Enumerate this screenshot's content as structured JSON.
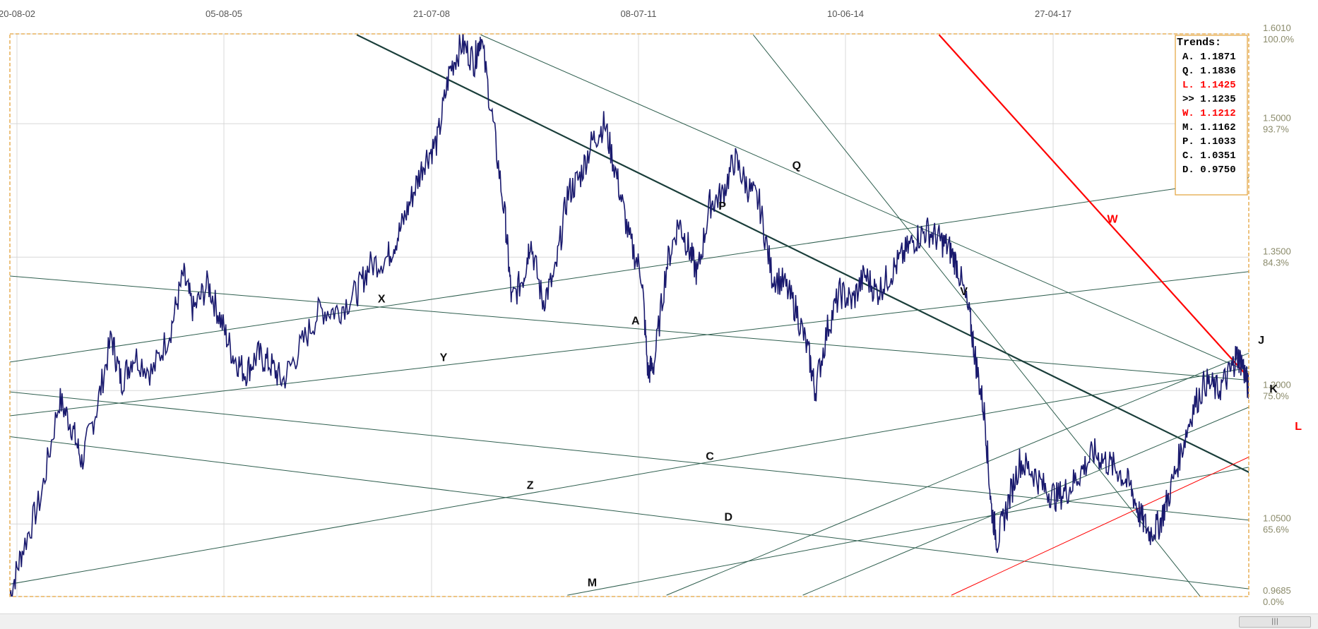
{
  "chart_data": {
    "type": "line",
    "x_ticks": [
      "20-08-02",
      "05-08-05",
      "21-07-08",
      "08-07-11",
      "10-06-14",
      "27-04-17"
    ],
    "y_ticks": [
      {
        "value": 1.601,
        "label": "1.6010",
        "pct": "100.0%"
      },
      {
        "value": 1.5,
        "label": "1.5000",
        "pct": "93.7%"
      },
      {
        "value": 1.35,
        "label": "1.3500",
        "pct": "84.3%"
      },
      {
        "value": 1.2,
        "label": "1.2000",
        "pct": "75.0%"
      },
      {
        "value": 1.05,
        "label": "1.0500",
        "pct": "65.6%"
      },
      {
        "value": 0.9685,
        "label": "0.9685",
        "pct": "0.0%"
      }
    ],
    "ylim": [
      0.9685,
      1.601
    ],
    "grid": true,
    "series": [
      {
        "color": "#1a1a6e",
        "points": [
          [
            0.0,
            0.97
          ],
          [
            0.01,
            1.02
          ],
          [
            0.025,
            1.08
          ],
          [
            0.04,
            1.19
          ],
          [
            0.05,
            1.16
          ],
          [
            0.058,
            1.12
          ],
          [
            0.07,
            1.18
          ],
          [
            0.082,
            1.26
          ],
          [
            0.09,
            1.21
          ],
          [
            0.1,
            1.24
          ],
          [
            0.115,
            1.22
          ],
          [
            0.13,
            1.27
          ],
          [
            0.14,
            1.33
          ],
          [
            0.148,
            1.29
          ],
          [
            0.16,
            1.32
          ],
          [
            0.17,
            1.28
          ],
          [
            0.18,
            1.24
          ],
          [
            0.19,
            1.22
          ],
          [
            0.2,
            1.24
          ],
          [
            0.21,
            1.23
          ],
          [
            0.22,
            1.21
          ],
          [
            0.235,
            1.25
          ],
          [
            0.25,
            1.29
          ],
          [
            0.265,
            1.29
          ],
          [
            0.28,
            1.31
          ],
          [
            0.29,
            1.34
          ],
          [
            0.305,
            1.35
          ],
          [
            0.315,
            1.38
          ],
          [
            0.325,
            1.42
          ],
          [
            0.335,
            1.46
          ],
          [
            0.345,
            1.48
          ],
          [
            0.355,
            1.56
          ],
          [
            0.365,
            1.59
          ],
          [
            0.375,
            1.57
          ],
          [
            0.38,
            1.6
          ],
          [
            0.39,
            1.5
          ],
          [
            0.4,
            1.39
          ],
          [
            0.405,
            1.3
          ],
          [
            0.415,
            1.33
          ],
          [
            0.42,
            1.37
          ],
          [
            0.43,
            1.3
          ],
          [
            0.44,
            1.33
          ],
          [
            0.45,
            1.42
          ],
          [
            0.46,
            1.44
          ],
          [
            0.47,
            1.48
          ],
          [
            0.48,
            1.5
          ],
          [
            0.49,
            1.44
          ],
          [
            0.5,
            1.37
          ],
          [
            0.51,
            1.33
          ],
          [
            0.515,
            1.22
          ],
          [
            0.52,
            1.23
          ],
          [
            0.53,
            1.34
          ],
          [
            0.54,
            1.39
          ],
          [
            0.548,
            1.36
          ],
          [
            0.555,
            1.33
          ],
          [
            0.565,
            1.41
          ],
          [
            0.575,
            1.42
          ],
          [
            0.585,
            1.46
          ],
          [
            0.595,
            1.43
          ],
          [
            0.605,
            1.41
          ],
          [
            0.615,
            1.33
          ],
          [
            0.625,
            1.32
          ],
          [
            0.635,
            1.29
          ],
          [
            0.645,
            1.24
          ],
          [
            0.65,
            1.2
          ],
          [
            0.66,
            1.27
          ],
          [
            0.67,
            1.31
          ],
          [
            0.68,
            1.3
          ],
          [
            0.69,
            1.33
          ],
          [
            0.7,
            1.31
          ],
          [
            0.71,
            1.33
          ],
          [
            0.72,
            1.35
          ],
          [
            0.73,
            1.37
          ],
          [
            0.74,
            1.38
          ],
          [
            0.75,
            1.37
          ],
          [
            0.758,
            1.36
          ],
          [
            0.765,
            1.34
          ],
          [
            0.775,
            1.28
          ],
          [
            0.78,
            1.23
          ],
          [
            0.787,
            1.17
          ],
          [
            0.792,
            1.07
          ],
          [
            0.797,
            1.03
          ],
          [
            0.805,
            1.07
          ],
          [
            0.815,
            1.12
          ],
          [
            0.825,
            1.11
          ],
          [
            0.835,
            1.09
          ],
          [
            0.845,
            1.08
          ],
          [
            0.855,
            1.09
          ],
          [
            0.865,
            1.11
          ],
          [
            0.875,
            1.13
          ],
          [
            0.885,
            1.12
          ],
          [
            0.895,
            1.11
          ],
          [
            0.905,
            1.09
          ],
          [
            0.912,
            1.06
          ],
          [
            0.92,
            1.04
          ],
          [
            0.928,
            1.05
          ],
          [
            0.935,
            1.08
          ],
          [
            0.945,
            1.13
          ],
          [
            0.955,
            1.18
          ],
          [
            0.965,
            1.21
          ],
          [
            0.975,
            1.2
          ],
          [
            0.985,
            1.22
          ],
          [
            0.99,
            1.24
          ],
          [
            0.995,
            1.23
          ],
          [
            1.0,
            1.2
          ],
          [
            1.005,
            1.17
          ],
          [
            1.015,
            1.17
          ],
          [
            1.025,
            1.17
          ],
          [
            1.035,
            1.15
          ],
          [
            1.045,
            1.14
          ],
          [
            1.055,
            1.13
          ],
          [
            1.065,
            1.12
          ]
        ]
      }
    ],
    "trend_lines": [
      {
        "label": "A",
        "color": "#2e5e4e",
        "label_x": 0.505,
        "start": [
          -0.01,
          1.33
        ],
        "end": [
          1.1,
          1.2
        ]
      },
      {
        "label": "Q",
        "color": "#2e5e4e",
        "label_x": 0.635,
        "start": [
          0.38,
          1.6
        ],
        "end": [
          1.1,
          1.16
        ]
      },
      {
        "label": "P",
        "color": "#1a3e3a",
        "label_x": 0.575,
        "start": [
          0.28,
          1.6
        ],
        "end": [
          1.1,
          1.04
        ],
        "width": 2.2
      },
      {
        "label": "V",
        "color": "#2e5e4e",
        "label_x": 0.77,
        "start": [
          0.6,
          1.6
        ],
        "end": [
          1.0,
          0.9
        ]
      },
      {
        "label": "X",
        "color": "#2e5e4e",
        "label_x": 0.3,
        "start": [
          -0.01,
          1.23
        ],
        "end": [
          1.1,
          1.46
        ]
      },
      {
        "label": "Y",
        "color": "#2e5e4e",
        "label_x": 0.35,
        "start": [
          -0.01,
          1.17
        ],
        "end": [
          1.1,
          1.35
        ]
      },
      {
        "label": "Z",
        "color": "#2e5e4e",
        "label_x": 0.42,
        "start": [
          -0.01,
          0.98
        ],
        "end": [
          1.1,
          1.25
        ]
      },
      {
        "label": "C",
        "color": "#2e5e4e",
        "label_x": 0.565,
        "start": [
          -0.01,
          1.2
        ],
        "end": [
          1.1,
          1.04
        ]
      },
      {
        "label": "D",
        "color": "#2e5e4e",
        "label_x": 0.58,
        "start": [
          -0.01,
          1.15
        ],
        "end": [
          1.1,
          0.96
        ]
      },
      {
        "label": "M",
        "color": "#2e5e4e",
        "label_x": 0.47,
        "start": [
          0.45,
          0.97
        ],
        "end": [
          1.1,
          1.14
        ]
      },
      {
        "label": "J",
        "color": "#2e5e4e",
        "label_x": 1.01,
        "start": [
          0.53,
          0.97
        ],
        "end": [
          1.1,
          1.3
        ]
      },
      {
        "label": "K",
        "color": "#2e5e4e",
        "label_x": 1.02,
        "start": [
          0.64,
          0.97
        ],
        "end": [
          1.1,
          1.24
        ]
      },
      {
        "label": "W",
        "color": "#ff0000",
        "label_x": 0.89,
        "start": [
          0.75,
          1.6
        ],
        "end": [
          1.1,
          1.06
        ],
        "width": 2.2
      },
      {
        "label": "L",
        "color": "#ff0000",
        "label_x": 1.04,
        "start": [
          0.76,
          0.97
        ],
        "end": [
          1.1,
          1.19
        ]
      }
    ],
    "legend": {
      "title": "Trends:",
      "placement": "top-right",
      "entries": [
        {
          "text": "A. 1.1871",
          "color": "#000000"
        },
        {
          "text": "Q. 1.1836",
          "color": "#000000"
        },
        {
          "text": "L. 1.1425",
          "color": "#ff0000"
        },
        {
          "text": ">> 1.1235",
          "color": "#000000"
        },
        {
          "text": "W. 1.1212",
          "color": "#ff0000"
        },
        {
          "text": "M. 1.1162",
          "color": "#000000"
        },
        {
          "text": "P. 1.1033",
          "color": "#000000"
        },
        {
          "text": "C. 1.0351",
          "color": "#000000"
        },
        {
          "text": "D. 0.9750",
          "color": "#000000"
        }
      ]
    }
  },
  "colors": {
    "frame": "#e3a23a",
    "grid": "#d8d8d8",
    "price": "#1a1a6e",
    "axis_text": "#555555",
    "pct_text": "#8a8a6a"
  },
  "scrollbar": {
    "thumb_glyph": "|||"
  }
}
